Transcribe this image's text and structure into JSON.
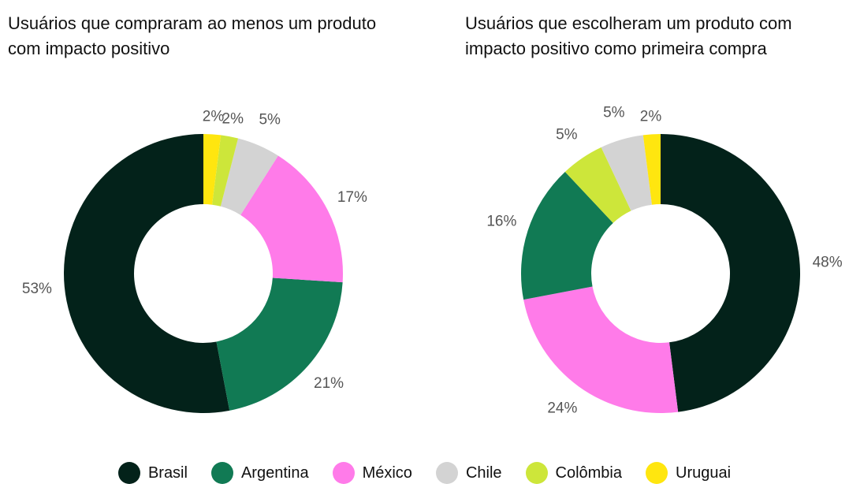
{
  "chart_data": [
    {
      "type": "donut",
      "title": "Usuários que compraram ao menos um produto com impacto positivo",
      "direction": "counterclockwise",
      "categories": [
        "Brasil",
        "Argentina",
        "México",
        "Chile",
        "Colômbia",
        "Uruguai"
      ],
      "values": [
        53,
        21,
        17,
        5,
        2,
        2
      ],
      "value_labels": [
        "53%",
        "21%",
        "17%",
        "5%",
        "2%",
        "2%"
      ],
      "colors": [
        "#03221a",
        "#117a54",
        "#ff7be9",
        "#d3d3d3",
        "#cde63a",
        "#ffe60f"
      ]
    },
    {
      "type": "donut",
      "title": "Usuários que escolheram um produto com impacto positivo como primeira compra",
      "direction": "clockwise",
      "categories": [
        "Brasil",
        "México",
        "Argentina",
        "Colômbia",
        "Chile",
        "Uruguai"
      ],
      "values": [
        48,
        24,
        16,
        5,
        5,
        2
      ],
      "value_labels": [
        "48%",
        "24%",
        "16%",
        "5%",
        "5%",
        "2%"
      ],
      "colors": [
        "#03221a",
        "#ff7be9",
        "#117a54",
        "#cde63a",
        "#d3d3d3",
        "#ffe60f"
      ]
    }
  ]
}
